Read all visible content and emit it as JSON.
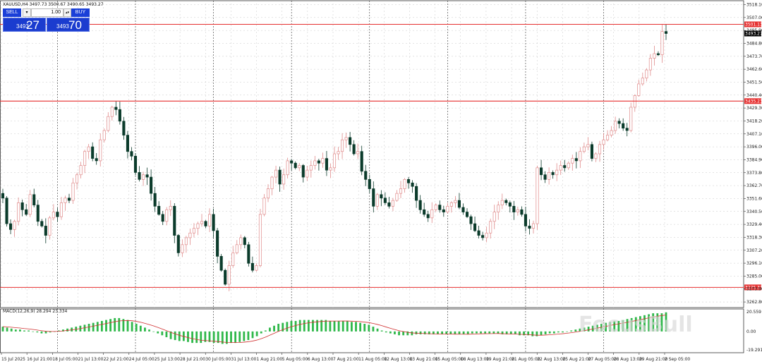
{
  "symbol_header": "XAUUSD,H4  3497.73 3500.67 3490.65 3493.27",
  "trade_panel": {
    "sell_label": "SELL",
    "buy_label": "BUY",
    "lot_value": "1.00",
    "sell_price_small": "3493",
    "sell_price_big": "27",
    "buy_price_small": "3493",
    "buy_price_big": "70"
  },
  "watermark_text": "FocusBull",
  "colors": {
    "bull": "#e08b8b",
    "bear": "#0b3b2b",
    "level": "#e63030",
    "macd_hist": "#2fb84a",
    "macd_signal": "#d03030",
    "grid": "#c8c8c8",
    "panel_blue": "#1b3ccf"
  },
  "chart_data": {
    "type": "candlestick",
    "timeframe": "H4",
    "symbol": "XAUUSD",
    "ylim": [
      3258.0,
      3519.0
    ],
    "y_ticks": [
      "3518.10",
      "3507.00",
      "3495.90",
      "3484.80",
      "3473.70",
      "3462.60",
      "3451.50",
      "3440.40",
      "3429.30",
      "3418.20",
      "3407.10",
      "3396.00",
      "3384.90",
      "3373.80",
      "3362.70",
      "3351.60",
      "3340.50",
      "3329.40",
      "3318.30",
      "3307.20",
      "3296.10",
      "3285.00",
      "3273.90",
      "3262.80"
    ],
    "x_labels": [
      "15 Jul 2025",
      "16 Jul 21:00",
      "18 Jul 05:00",
      "21 Jul 13:00",
      "22 Jul 21:00",
      "24 Jul 05:00",
      "25 Jul 13:00",
      "28 Jul 21:00",
      "30 Jul 05:00",
      "31 Jul 13:00",
      "1 Aug 21:00",
      "5 Aug 05:00",
      "6 Aug 13:00",
      "7 Aug 21:00",
      "11 Aug 05:00",
      "12 Aug 13:00",
      "13 Aug 21:00",
      "15 Aug 05:00",
      "18 Aug 13:00",
      "19 Aug 21:00",
      "21 Aug 05:00",
      "22 Aug 13:00",
      "25 Aug 21:00",
      "27 Aug 05:00",
      "28 Aug 13:00",
      "29 Aug 21:00",
      "2 Sep 05:00"
    ],
    "levels": [
      {
        "value": 3501.13,
        "label": "3501.13"
      },
      {
        "value": 3435.23,
        "label": "3435.23"
      },
      {
        "value": 3275.33,
        "label": "3275.33"
      }
    ],
    "current_price": {
      "value": 3493.27,
      "label": "3493.27"
    },
    "period_separators": [
      14,
      34,
      54,
      74,
      94,
      114,
      134,
      154
    ],
    "closes": [
      3352,
      3330,
      3325,
      3332,
      3348,
      3342,
      3338,
      3355,
      3346,
      3332,
      3328,
      3320,
      3335,
      3340,
      3336,
      3348,
      3352,
      3350,
      3365,
      3372,
      3380,
      3392,
      3396,
      3386,
      3384,
      3402,
      3410,
      3422,
      3430,
      3428,
      3418,
      3406,
      3392,
      3388,
      3374,
      3368,
      3372,
      3370,
      3356,
      3345,
      3338,
      3332,
      3342,
      3345,
      3320,
      3305,
      3312,
      3318,
      3322,
      3326,
      3330,
      3332,
      3328,
      3338,
      3324,
      3302,
      3290,
      3278,
      3294,
      3305,
      3312,
      3318,
      3312,
      3296,
      3290,
      3294,
      3338,
      3352,
      3360,
      3370,
      3376,
      3364,
      3372,
      3384,
      3382,
      3378,
      3380,
      3370,
      3376,
      3380,
      3384,
      3382,
      3386,
      3376,
      3378,
      3390,
      3392,
      3402,
      3404,
      3398,
      3390,
      3392,
      3375,
      3368,
      3360,
      3345,
      3355,
      3352,
      3348,
      3345,
      3350,
      3356,
      3360,
      3368,
      3365,
      3362,
      3350,
      3342,
      3338,
      3335,
      3342,
      3346,
      3342,
      3340,
      3345,
      3348,
      3350,
      3344,
      3340,
      3336,
      3330,
      3324,
      3320,
      3318,
      3322,
      3332,
      3340,
      3346,
      3350,
      3348,
      3345,
      3340,
      3342,
      3338,
      3328,
      3326,
      3330,
      3378,
      3372,
      3368,
      3374,
      3372,
      3376,
      3380,
      3378,
      3382,
      3386,
      3384,
      3392,
      3396,
      3398,
      3386,
      3390,
      3398,
      3402,
      3406,
      3410,
      3418,
      3416,
      3412,
      3410,
      3430,
      3440,
      3450,
      3455,
      3462,
      3472,
      3476,
      3475,
      3495,
      3493.27
    ],
    "opens_note": "",
    "macd": {
      "label": "MACD(12,26,9) 28.294 23.334",
      "ylim": [
        -19.291,
        20.559
      ],
      "y_ticks": [
        "20.559",
        "0.00",
        "-19.291"
      ],
      "histogram": [
        5,
        4,
        3,
        2,
        2,
        1,
        1,
        0,
        -1,
        -2,
        -2,
        -1,
        0,
        1,
        2,
        3,
        4,
        5,
        6,
        7,
        8,
        9,
        10,
        11,
        12,
        13,
        14,
        14,
        13,
        12,
        10,
        8,
        6,
        4,
        2,
        0,
        -2,
        -4,
        -6,
        -8,
        -9,
        -10,
        -10,
        -11,
        -12,
        -12,
        -12,
        -11,
        -11,
        -12,
        -12,
        -13,
        -13,
        -12,
        -12,
        -11,
        -10,
        -9,
        -7,
        -5,
        -2,
        1,
        4,
        6,
        8,
        9,
        10,
        11,
        11,
        12,
        12,
        12,
        12,
        12,
        12,
        12,
        11,
        11,
        11,
        11,
        11,
        10,
        10,
        9,
        8,
        7,
        5,
        3,
        1,
        -1,
        -2,
        -3,
        -4,
        -4,
        -4,
        -4,
        -3,
        -3,
        -3,
        -3,
        -3,
        -3,
        -3,
        -3,
        -3,
        -3,
        -3,
        -3,
        -3,
        -2,
        -2,
        -2,
        -2,
        -2,
        -2,
        -2,
        -3,
        -3,
        -3,
        -3,
        -4,
        -4,
        -4,
        -5,
        -5,
        -4,
        -3,
        -2,
        -2,
        -1,
        -1,
        0,
        1,
        2,
        3,
        4,
        5,
        6,
        7,
        8,
        9,
        10,
        11,
        11,
        12,
        13,
        14,
        15,
        16,
        17,
        18,
        19,
        19,
        19,
        20
      ]
    }
  }
}
